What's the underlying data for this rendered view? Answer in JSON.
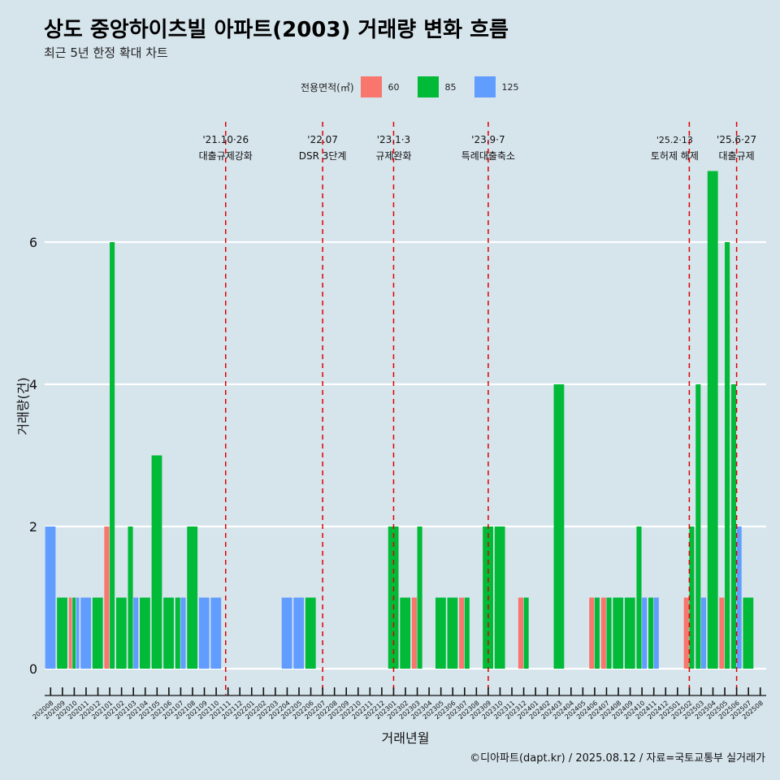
{
  "title": "상도 중앙하이츠빌 아파트(2003) 거래량 변화 흐름",
  "subtitle": "최근 5년 한정 확대 차트",
  "legend": {
    "title": "전용면적(㎡)",
    "items": [
      {
        "label": "60",
        "color": "#f8766d"
      },
      {
        "label": "85",
        "color": "#00ba38"
      },
      {
        "label": "125",
        "color": "#619cff"
      }
    ]
  },
  "credit": "©디아파트(dapt.kr) / 2025.08.12 / 자료=국토교통부 실거래가",
  "chart_data": {
    "type": "bar",
    "stacked": false,
    "xlabel": "거래년월",
    "ylabel": "거래량(건)",
    "ylim": [
      -0.3,
      7.6
    ],
    "yticks": [
      0,
      2,
      4,
      6
    ],
    "categories": [
      "202008",
      "202009",
      "202010",
      "202011",
      "202012",
      "202101",
      "202102",
      "202103",
      "202104",
      "202105",
      "202106",
      "202107",
      "202108",
      "202109",
      "202110",
      "202111",
      "202112",
      "202201",
      "202202",
      "202203",
      "202204",
      "202205",
      "202206",
      "202207",
      "202208",
      "202209",
      "202210",
      "202211",
      "202212",
      "202301",
      "202302",
      "202303",
      "202304",
      "202305",
      "202306",
      "202307",
      "202308",
      "202309",
      "202310",
      "202311",
      "202312",
      "202401",
      "202402",
      "202403",
      "202404",
      "202405",
      "202406",
      "202407",
      "202408",
      "202409",
      "202410",
      "202411",
      "202412",
      "202501",
      "202502",
      "202503",
      "202504",
      "202505",
      "202506",
      "202507",
      "202508"
    ],
    "series": [
      {
        "name": "60",
        "color": "#f8766d",
        "points": [
          [
            "202010",
            1
          ],
          [
            "202101",
            2
          ],
          [
            "202303",
            1
          ],
          [
            "202307",
            1
          ],
          [
            "202312",
            1
          ],
          [
            "202406",
            1
          ],
          [
            "202407",
            1
          ],
          [
            "202502",
            1
          ],
          [
            "202505",
            1
          ]
        ]
      },
      {
        "name": "85",
        "color": "#00ba38",
        "points": [
          [
            "202009",
            1
          ],
          [
            "202010",
            1
          ],
          [
            "202012",
            1
          ],
          [
            "202101",
            6
          ],
          [
            "202102",
            1
          ],
          [
            "202103",
            2
          ],
          [
            "202104",
            1
          ],
          [
            "202105",
            3
          ],
          [
            "202106",
            1
          ],
          [
            "202107",
            1
          ],
          [
            "202108",
            2
          ],
          [
            "202206",
            1
          ],
          [
            "202301",
            2
          ],
          [
            "202302",
            1
          ],
          [
            "202303",
            2
          ],
          [
            "202305",
            1
          ],
          [
            "202306",
            1
          ],
          [
            "202307",
            1
          ],
          [
            "202309",
            2
          ],
          [
            "202310",
            2
          ],
          [
            "202312",
            1
          ],
          [
            "202403",
            4
          ],
          [
            "202406",
            1
          ],
          [
            "202407",
            1
          ],
          [
            "202408",
            1
          ],
          [
            "202409",
            1
          ],
          [
            "202410",
            2
          ],
          [
            "202411",
            1
          ],
          [
            "202502",
            2
          ],
          [
            "202503",
            4
          ],
          [
            "202504",
            7
          ],
          [
            "202505",
            6
          ],
          [
            "202506",
            4
          ],
          [
            "202507",
            1
          ]
        ]
      },
      {
        "name": "125",
        "color": "#619cff",
        "points": [
          [
            "202008",
            2
          ],
          [
            "202010",
            1
          ],
          [
            "202011",
            1
          ],
          [
            "202103",
            1
          ],
          [
            "202107",
            1
          ],
          [
            "202109",
            1
          ],
          [
            "202110",
            1
          ],
          [
            "202204",
            1
          ],
          [
            "202205",
            1
          ],
          [
            "202410",
            1
          ],
          [
            "202411",
            1
          ],
          [
            "202503",
            1
          ],
          [
            "202506",
            2
          ]
        ]
      }
    ],
    "events": [
      {
        "date": "'21.10·26",
        "label": "대출규제강화",
        "at": 202110.8
      },
      {
        "date": "'22.07",
        "label": "DSR 3단계",
        "at": 202207
      },
      {
        "date": "'23.1·3",
        "label": "규제완화",
        "at": 202301
      },
      {
        "date": "'23.9·7",
        "label": "특례대출축소",
        "at": 202309
      },
      {
        "date": "'25.2·13",
        "label": "토허제 해제",
        "at": 202502
      },
      {
        "date": "'25.6·27",
        "label": "대출규제",
        "at": 202506
      }
    ],
    "grid": true,
    "legend_position": "top"
  }
}
